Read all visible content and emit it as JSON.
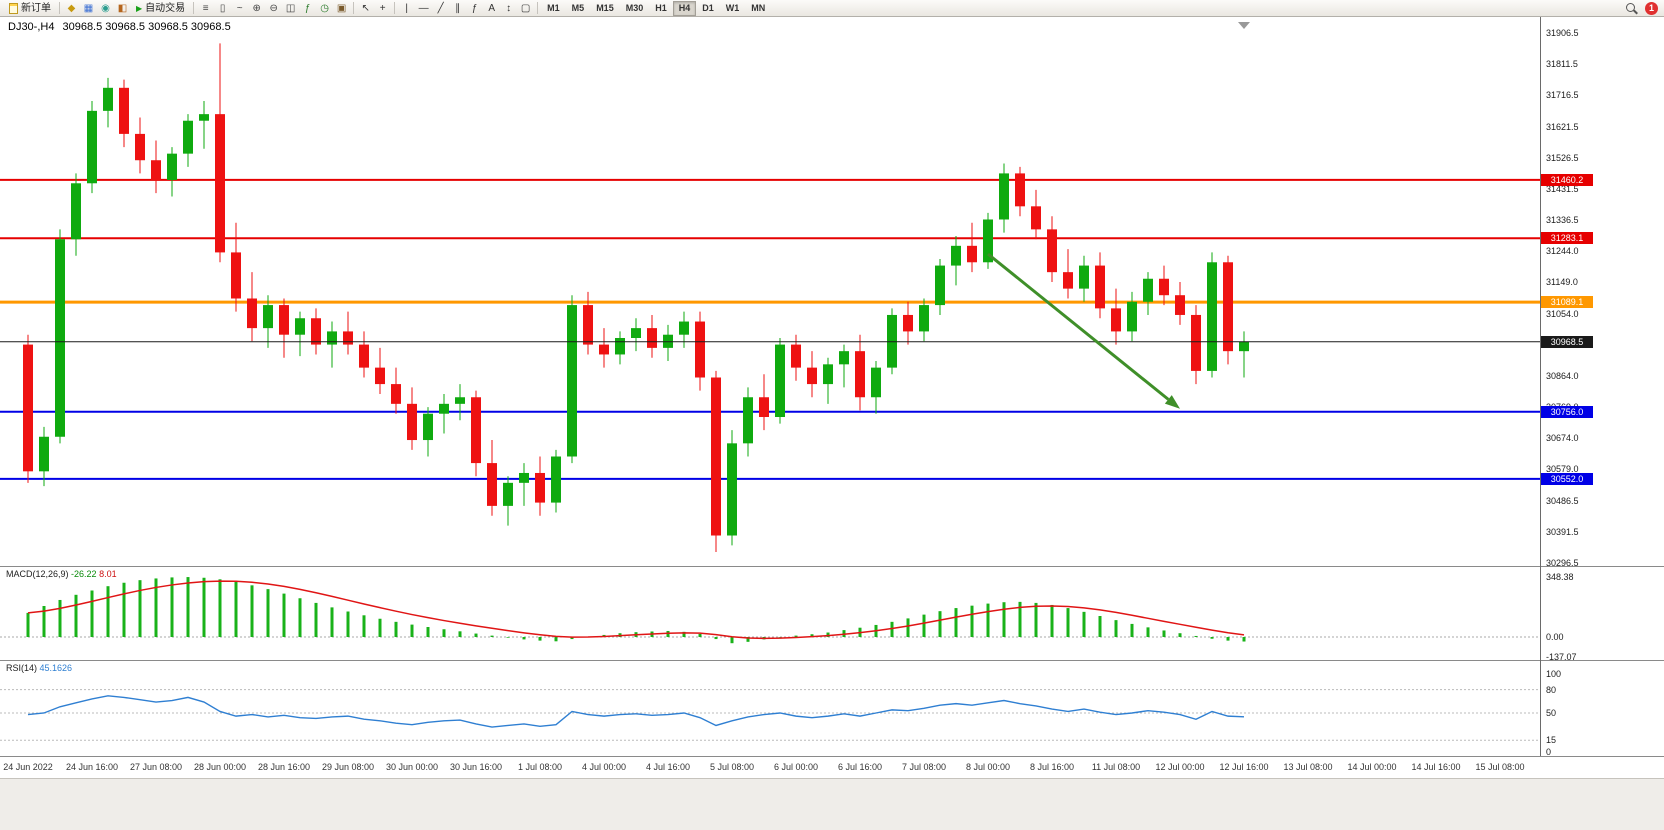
{
  "toolbar": {
    "new_order": "新订单",
    "autotrading": "自动交易",
    "icons_left": [
      {
        "name": "charts-icon",
        "glyph": "◆",
        "color": "#c79a10"
      },
      {
        "name": "market-watch-icon",
        "glyph": "▦",
        "color": "#3b6fd4"
      },
      {
        "name": "navigator-icon",
        "glyph": "◉",
        "color": "#2a9d8f"
      },
      {
        "name": "data-window-icon",
        "glyph": "◧",
        "color": "#b5651d"
      }
    ],
    "icons_chart": [
      {
        "name": "bar-chart-icon",
        "glyph": "≡",
        "color": "#444444"
      },
      {
        "name": "candlestick-chart-icon",
        "glyph": "▯",
        "color": "#444444"
      },
      {
        "name": "line-chart-icon",
        "glyph": "~",
        "color": "#444444"
      },
      {
        "name": "zoom-in-icon",
        "glyph": "⊕",
        "color": "#444444"
      },
      {
        "name": "zoom-out-icon",
        "glyph": "⊖",
        "color": "#444444"
      },
      {
        "name": "tile-windows-icon",
        "glyph": "◫",
        "color": "#444444"
      },
      {
        "name": "indicators-icon",
        "glyph": "ƒ",
        "color": "#2b7a2b"
      },
      {
        "name": "periods-icon",
        "glyph": "◷",
        "color": "#2b7a2b"
      },
      {
        "name": "templates-icon",
        "glyph": "▣",
        "color": "#7a5a2b"
      }
    ],
    "icons_cursor": [
      {
        "name": "cursor-icon",
        "glyph": "↖",
        "color": "#333333"
      },
      {
        "name": "crosshair-icon",
        "glyph": "+",
        "color": "#333333"
      }
    ],
    "icons_draw": [
      {
        "name": "vertical-line-icon",
        "glyph": "|",
        "color": "#333333"
      },
      {
        "name": "horizontal-line-icon",
        "glyph": "—",
        "color": "#333333"
      },
      {
        "name": "trendline-icon",
        "glyph": "╱",
        "color": "#333333"
      },
      {
        "name": "channel-icon",
        "glyph": "∥",
        "color": "#333333"
      },
      {
        "name": "fibonacci-icon",
        "glyph": "ƒ",
        "color": "#333333"
      },
      {
        "name": "text-icon",
        "glyph": "A",
        "color": "#333333"
      },
      {
        "name": "arrows-icon",
        "glyph": "↕",
        "color": "#333333"
      },
      {
        "name": "shapes-icon",
        "glyph": "▢",
        "color": "#333333"
      }
    ],
    "timeframes": [
      "M1",
      "M5",
      "M15",
      "M30",
      "H1",
      "H4",
      "D1",
      "W1",
      "MN"
    ],
    "active_timeframe": "H4",
    "notification_count": "1"
  },
  "chart_data": {
    "type": "candlestick",
    "title": "DJ30-,H4",
    "ohlc_text": "30968.5 30968.5 30968.5 30968.5",
    "bull_color": "#0faa0f",
    "bear_color": "#ee1212",
    "price_axis": {
      "top_value": 31906.5,
      "bottom_value": 30296.5,
      "labels": [
        "31906.5",
        "31811.5",
        "31716.5",
        "31621.5",
        "31526.5",
        "31431.5",
        "31336.5",
        "31244.0",
        "31149.0",
        "31054.0",
        "30959.0",
        "30864.0",
        "30769.0",
        "30674.0",
        "30579.0",
        "30486.5",
        "30391.5",
        "30296.5"
      ]
    },
    "hlines": [
      {
        "price": 31460.2,
        "label": "31460.2",
        "color": "#e60000",
        "width": 2
      },
      {
        "price": 31283.1,
        "label": "31283.1",
        "color": "#e60000",
        "width": 2
      },
      {
        "price": 31089.1,
        "label": "31089.1",
        "color": "#ff9800",
        "width": 3
      },
      {
        "price": 30968.5,
        "label": "30968.5",
        "color": "#1a1a1a",
        "width": 1,
        "current": true
      },
      {
        "price": 30756.0,
        "label": "30756.0",
        "color": "#0000e6",
        "width": 2
      },
      {
        "price": 30552.0,
        "label": "30552.0",
        "color": "#0000e6",
        "width": 2
      }
    ],
    "arrow": {
      "from_index": 60,
      "from_price": 31235,
      "to_index": 72,
      "to_price": 30765,
      "color": "#3f8f29"
    },
    "dates": [
      "24 Jun 2022",
      "24 Jun 16:00",
      "27 Jun 08:00",
      "28 Jun 00:00",
      "28 Jun 16:00",
      "29 Jun 08:00",
      "30 Jun 00:00",
      "30 Jun 16:00",
      "1 Jul 08:00",
      "4 Jul 00:00",
      "4 Jul 16:00",
      "5 Jul 08:00",
      "6 Jul 00:00",
      "6 Jul 16:00",
      "7 Jul 08:00",
      "8 Jul 00:00",
      "8 Jul 16:00",
      "11 Jul 08:00",
      "12 Jul 00:00",
      "12 Jul 16:00",
      "13 Jul 08:00",
      "14 Jul 00:00",
      "14 Jul 16:00",
      "15 Jul 08:00"
    ],
    "candles": [
      [
        30960,
        30990,
        30540,
        30575
      ],
      [
        30575,
        30710,
        30530,
        30680
      ],
      [
        30680,
        31310,
        30660,
        31280
      ],
      [
        31280,
        31480,
        31230,
        31450
      ],
      [
        31450,
        31700,
        31420,
        31670
      ],
      [
        31670,
        31770,
        31620,
        31740
      ],
      [
        31740,
        31765,
        31560,
        31600
      ],
      [
        31600,
        31650,
        31480,
        31520
      ],
      [
        31520,
        31580,
        31420,
        31460
      ],
      [
        31460,
        31560,
        31410,
        31540
      ],
      [
        31540,
        31660,
        31500,
        31640
      ],
      [
        31640,
        31700,
        31555,
        31660
      ],
      [
        31660,
        31875,
        31210,
        31240
      ],
      [
        31240,
        31330,
        31060,
        31100
      ],
      [
        31100,
        31180,
        30970,
        31010
      ],
      [
        31010,
        31110,
        30950,
        31080
      ],
      [
        31080,
        31100,
        30920,
        30990
      ],
      [
        30990,
        31060,
        30925,
        31040
      ],
      [
        31040,
        31070,
        30930,
        30960
      ],
      [
        30960,
        31030,
        30890,
        31000
      ],
      [
        31000,
        31060,
        30930,
        30960
      ],
      [
        30960,
        31000,
        30860,
        30890
      ],
      [
        30890,
        30950,
        30810,
        30840
      ],
      [
        30840,
        30890,
        30750,
        30780
      ],
      [
        30780,
        30830,
        30640,
        30670
      ],
      [
        30670,
        30770,
        30620,
        30750
      ],
      [
        30750,
        30810,
        30690,
        30780
      ],
      [
        30780,
        30840,
        30730,
        30800
      ],
      [
        30800,
        30820,
        30560,
        30600
      ],
      [
        30600,
        30670,
        30440,
        30470
      ],
      [
        30470,
        30560,
        30410,
        30540
      ],
      [
        30540,
        30600,
        30470,
        30570
      ],
      [
        30570,
        30620,
        30440,
        30480
      ],
      [
        30480,
        30640,
        30450,
        30620
      ],
      [
        30620,
        31110,
        30600,
        31080
      ],
      [
        31080,
        31120,
        30930,
        30960
      ],
      [
        30960,
        31010,
        30890,
        30930
      ],
      [
        30930,
        31000,
        30900,
        30980
      ],
      [
        30980,
        31040,
        30940,
        31010
      ],
      [
        31010,
        31050,
        30920,
        30950
      ],
      [
        30950,
        31020,
        30910,
        30990
      ],
      [
        30990,
        31060,
        30950,
        31030
      ],
      [
        31030,
        31060,
        30820,
        30860
      ],
      [
        30860,
        30880,
        30330,
        30380
      ],
      [
        30380,
        30700,
        30350,
        30660
      ],
      [
        30660,
        30830,
        30620,
        30800
      ],
      [
        30800,
        30870,
        30700,
        30740
      ],
      [
        30740,
        30980,
        30720,
        30960
      ],
      [
        30960,
        30990,
        30850,
        30890
      ],
      [
        30890,
        30940,
        30800,
        30840
      ],
      [
        30840,
        30920,
        30780,
        30900
      ],
      [
        30900,
        30960,
        30830,
        30940
      ],
      [
        30940,
        30990,
        30760,
        30800
      ],
      [
        30800,
        30910,
        30750,
        30890
      ],
      [
        30890,
        31070,
        30870,
        31050
      ],
      [
        31050,
        31090,
        30960,
        31000
      ],
      [
        31000,
        31100,
        30970,
        31080
      ],
      [
        31080,
        31220,
        31050,
        31200
      ],
      [
        31200,
        31290,
        31140,
        31260
      ],
      [
        31260,
        31330,
        31180,
        31210
      ],
      [
        31210,
        31360,
        31190,
        31340
      ],
      [
        31340,
        31510,
        31300,
        31480
      ],
      [
        31480,
        31500,
        31350,
        31380
      ],
      [
        31380,
        31430,
        31280,
        31310
      ],
      [
        31310,
        31350,
        31150,
        31180
      ],
      [
        31180,
        31250,
        31100,
        31130
      ],
      [
        31130,
        31230,
        31090,
        31200
      ],
      [
        31200,
        31240,
        31040,
        31070
      ],
      [
        31070,
        31130,
        30960,
        31000
      ],
      [
        31000,
        31120,
        30970,
        31090
      ],
      [
        31090,
        31180,
        31050,
        31160
      ],
      [
        31160,
        31200,
        31080,
        31110
      ],
      [
        31110,
        31150,
        31020,
        31050
      ],
      [
        31050,
        31080,
        30840,
        30880
      ],
      [
        30880,
        31240,
        30860,
        31210
      ],
      [
        31210,
        31230,
        30900,
        30940
      ],
      [
        30940,
        31000,
        30860,
        30968.5
      ]
    ],
    "macd": {
      "name": "MACD(12,26,9)",
      "main_value": "-26.22",
      "signal_value": "8.01",
      "axis_labels": [
        "348.38",
        "0.00",
        "-137.07"
      ],
      "hist_color": "#19b219",
      "signal_color": "#e01515",
      "values": [
        140,
        180,
        215,
        245,
        270,
        295,
        315,
        330,
        340,
        346,
        348,
        344,
        335,
        320,
        300,
        278,
        252,
        225,
        198,
        172,
        148,
        126,
        106,
        88,
        72,
        58,
        45,
        33,
        20,
        8,
        -4,
        -14,
        -21,
        -25,
        -12,
        2,
        12,
        22,
        28,
        32,
        35,
        30,
        18,
        -12,
        -36,
        -28,
        -14,
        -2,
        8,
        16,
        26,
        40,
        54,
        70,
        88,
        108,
        130,
        150,
        168,
        182,
        194,
        202,
        204,
        198,
        186,
        168,
        146,
        122,
        98,
        76,
        56,
        38,
        22,
        6,
        -10,
        -21,
        -26.22
      ]
    },
    "rsi": {
      "name": "RSI(14)",
      "value": "45.1626",
      "axis_labels": [
        "100",
        "80",
        "50",
        "15",
        "0"
      ],
      "levels": [
        80,
        50,
        15
      ],
      "color": "#2f7fd2",
      "values": [
        48,
        50,
        58,
        63,
        68,
        72,
        70,
        67,
        64,
        66,
        70,
        64,
        52,
        46,
        48,
        45,
        47,
        44,
        43,
        45,
        46,
        42,
        40,
        37,
        35,
        38,
        40,
        41,
        36,
        32,
        34,
        36,
        33,
        35,
        52,
        48,
        46,
        48,
        49,
        47,
        48,
        50,
        44,
        34,
        40,
        45,
        48,
        50,
        46,
        44,
        46,
        49,
        46,
        50,
        54,
        53,
        56,
        60,
        62,
        60,
        63,
        66,
        62,
        59,
        55,
        52,
        55,
        51,
        48,
        50,
        53,
        51,
        48,
        42,
        52,
        46,
        45.16
      ]
    }
  }
}
